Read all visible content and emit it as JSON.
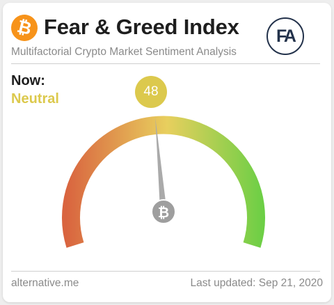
{
  "header": {
    "title": "Fear & Greed Index",
    "subtitle": "Multifactorial Crypto Market Sentiment Analysis",
    "btc_symbol": "₿",
    "logo_text": "FA"
  },
  "current": {
    "now_label": "Now:",
    "status": "Neutral",
    "value": "48"
  },
  "gauge": {
    "value": 48,
    "min": 0,
    "max": 100,
    "center_symbol": "₿",
    "colors": [
      "#d9643f",
      "#e8cf5e",
      "#66cf44"
    ]
  },
  "footer": {
    "source": "alternative.me",
    "last_updated": "Last updated: Sep 21, 2020"
  },
  "colors": {
    "accent": "#dcc94d",
    "bitcoin": "#f7931a",
    "logo": "#23324b"
  }
}
